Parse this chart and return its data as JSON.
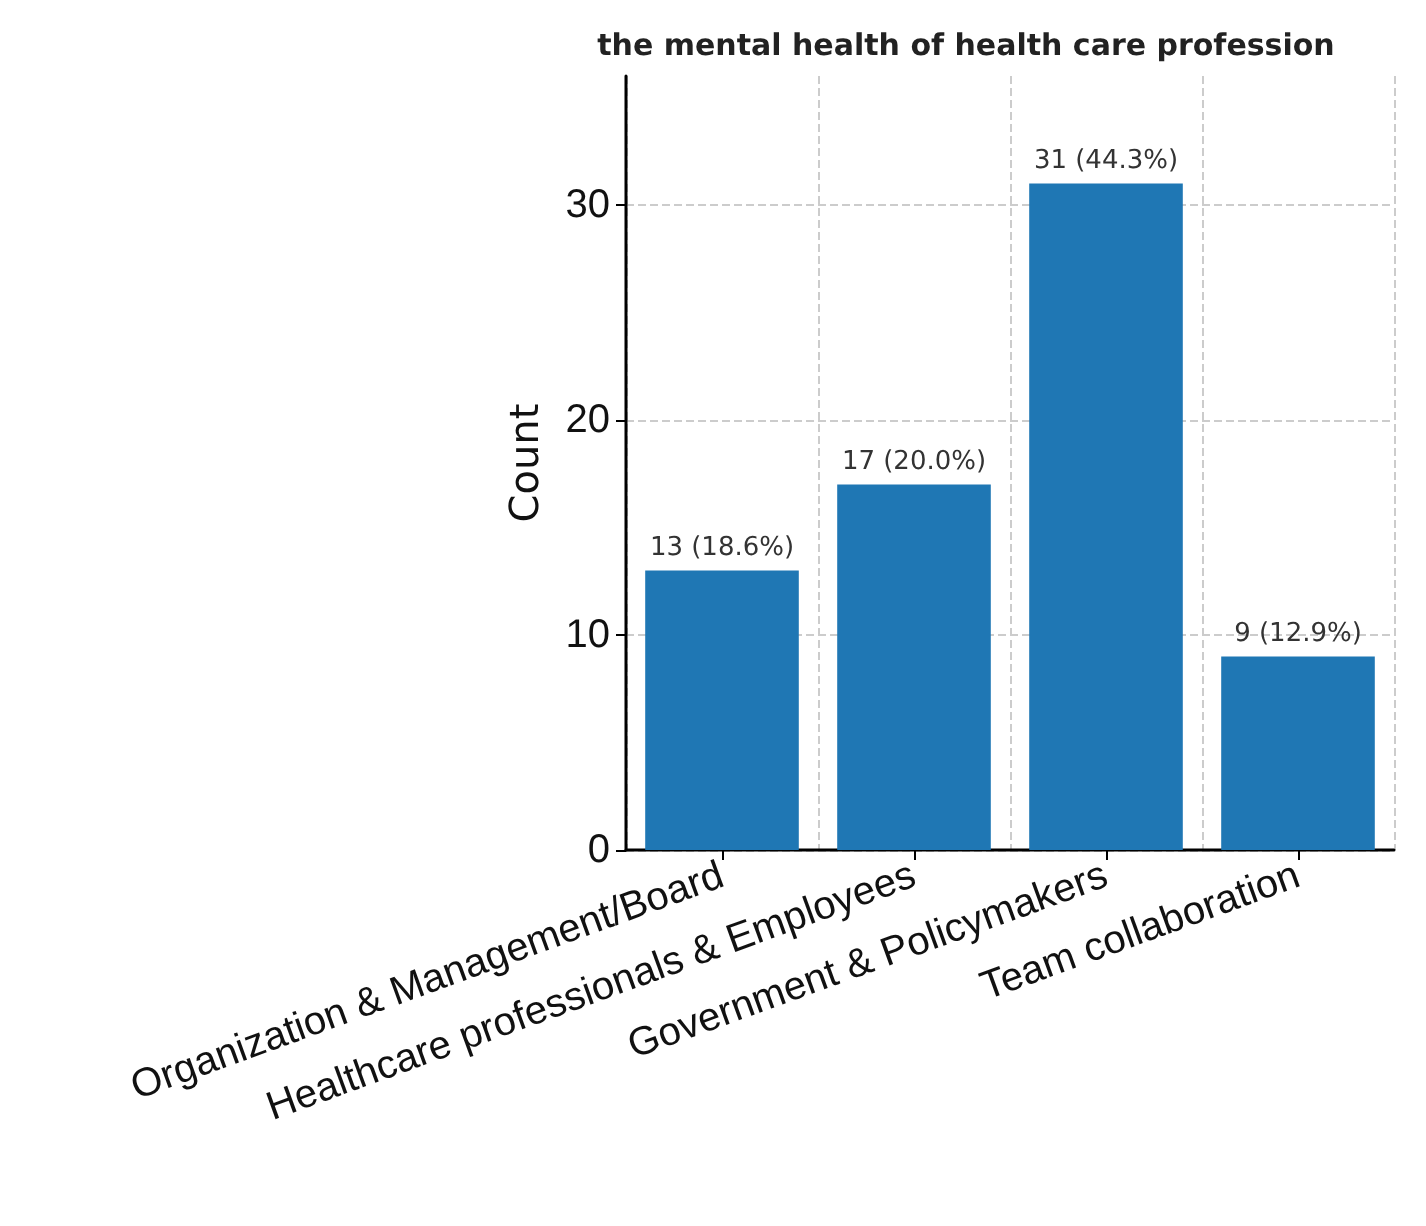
{
  "chart_data": {
    "type": "bar",
    "title": "the mental health of health care profession",
    "ylabel": "Count",
    "categories": [
      "Organization & Management/Board",
      "Healthcare professionals & Employees",
      "Government & Policymakers",
      "Team collaboration"
    ],
    "values": [
      13,
      17,
      31,
      9
    ],
    "color": "#1f77b4",
    "value_labels": [
      "13 (18.6%)",
      "17 (20.0%)",
      "31 (44.3%)",
      "9 (12.9%)"
    ],
    "ylim": [
      0,
      36
    ],
    "yticks": [
      0,
      10,
      20,
      30
    ],
    "grid": true
  }
}
